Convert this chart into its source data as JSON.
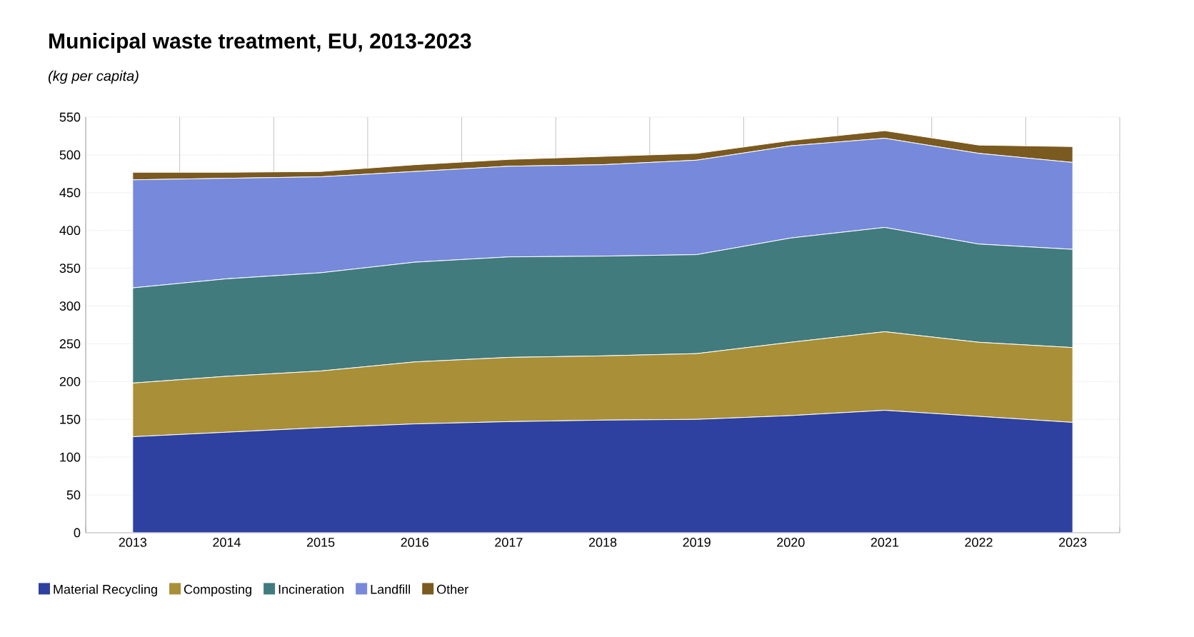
{
  "chart_data": {
    "type": "area",
    "stacked": true,
    "title": "Municipal waste treatment, EU, 2013-2023",
    "subtitle": "(kg per capita)",
    "categories": [
      "2013",
      "2014",
      "2015",
      "2016",
      "2017",
      "2018",
      "2019",
      "2020",
      "2021",
      "2022",
      "2023"
    ],
    "series": [
      {
        "name": "Material Recycling",
        "color": "#2e41a0",
        "values": [
          127,
          133,
          139,
          144,
          147,
          149,
          150,
          155,
          162,
          154,
          146
        ]
      },
      {
        "name": "Composting",
        "color": "#a98f37",
        "values": [
          71,
          74,
          75,
          82,
          85,
          85,
          87,
          97,
          104,
          98,
          99
        ]
      },
      {
        "name": "Incineration",
        "color": "#417b7d",
        "values": [
          126,
          129,
          130,
          132,
          133,
          132,
          131,
          138,
          138,
          130,
          130
        ]
      },
      {
        "name": "Landfill",
        "color": "#7689da",
        "values": [
          143,
          133,
          127,
          120,
          120,
          121,
          125,
          122,
          118,
          120,
          115
        ]
      },
      {
        "name": "Other",
        "color": "#7b5a20",
        "values": [
          10,
          8,
          7,
          9,
          9,
          11,
          9,
          7,
          10,
          11,
          21
        ]
      }
    ],
    "ylim": [
      0,
      550
    ],
    "yticks": [
      0,
      50,
      100,
      150,
      200,
      250,
      300,
      350,
      400,
      450,
      500,
      550
    ],
    "grid": "y",
    "legend": "bottom"
  }
}
